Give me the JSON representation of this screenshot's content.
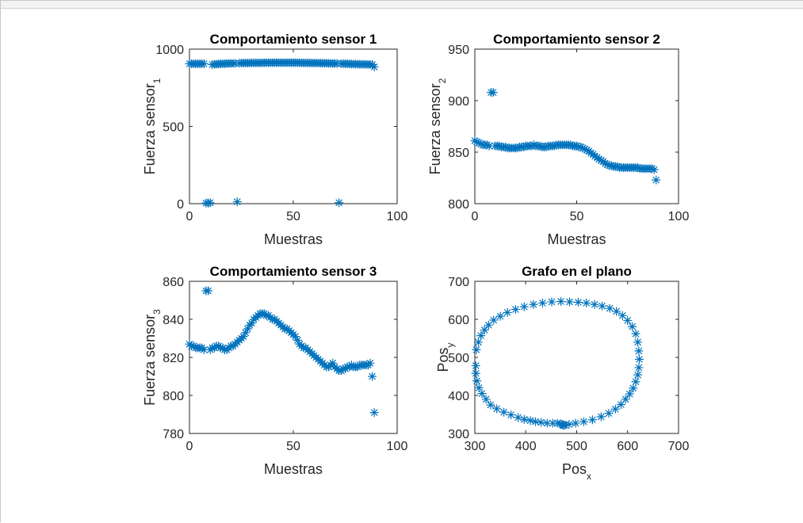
{
  "figure": {
    "marker_color": "#0072BD",
    "marker": "asterisk",
    "axes_color": "#262626"
  },
  "chart_data": [
    {
      "type": "scatter",
      "title": "Comportamiento sensor 1",
      "xlabel": "Muestras",
      "ylabel": "Fuerza sensor",
      "ylabel_sub": "1",
      "xlim": [
        0,
        100
      ],
      "ylim": [
        0,
        1000
      ],
      "xticks": [
        "0",
        "50",
        "100"
      ],
      "yticks": [
        "0",
        "500",
        "1000"
      ],
      "x": [
        0,
        1,
        2,
        3,
        4,
        5,
        6,
        7,
        8,
        9,
        10,
        11,
        12,
        13,
        14,
        15,
        16,
        17,
        18,
        19,
        20,
        21,
        22,
        23,
        24,
        25,
        26,
        27,
        28,
        29,
        30,
        31,
        32,
        33,
        34,
        35,
        36,
        37,
        38,
        39,
        40,
        41,
        42,
        43,
        44,
        45,
        46,
        47,
        48,
        49,
        50,
        51,
        52,
        53,
        54,
        55,
        56,
        57,
        58,
        59,
        60,
        61,
        62,
        63,
        64,
        65,
        66,
        67,
        68,
        69,
        70,
        71,
        72,
        73,
        74,
        75,
        76,
        77,
        78,
        79,
        80,
        81,
        82,
        83,
        84,
        85,
        86,
        87,
        88,
        89
      ],
      "y": [
        905,
        905,
        905,
        905,
        905,
        905,
        905,
        905,
        4,
        4,
        6,
        900,
        902,
        903,
        904,
        905,
        905,
        906,
        907,
        907,
        908,
        908,
        908,
        12,
        909,
        910,
        910,
        910,
        910,
        911,
        911,
        911,
        911,
        911,
        911,
        911,
        912,
        912,
        912,
        912,
        912,
        912,
        912,
        912,
        912,
        912,
        912,
        912,
        912,
        912,
        912,
        912,
        912,
        912,
        911,
        911,
        911,
        911,
        911,
        910,
        910,
        910,
        910,
        909,
        909,
        909,
        909,
        908,
        908,
        908,
        907,
        907,
        6,
        906,
        906,
        905,
        905,
        904,
        904,
        903,
        903,
        903,
        902,
        902,
        902,
        902,
        901,
        901,
        900,
        885
      ]
    },
    {
      "type": "scatter",
      "title": "Comportamiento sensor 2",
      "xlabel": "Muestras",
      "ylabel": "Fuerza sensor",
      "ylabel_sub": "2",
      "xlim": [
        0,
        100
      ],
      "ylim": [
        800,
        950
      ],
      "xticks": [
        "0",
        "50",
        "100"
      ],
      "yticks": [
        "800",
        "850",
        "900",
        "950"
      ],
      "x": [
        0,
        1,
        2,
        3,
        4,
        5,
        6,
        7,
        8,
        9,
        10,
        11,
        12,
        13,
        14,
        15,
        16,
        17,
        18,
        19,
        20,
        21,
        22,
        23,
        24,
        25,
        26,
        27,
        28,
        29,
        30,
        31,
        32,
        33,
        34,
        35,
        36,
        37,
        38,
        39,
        40,
        41,
        42,
        43,
        44,
        45,
        46,
        47,
        48,
        49,
        50,
        51,
        52,
        53,
        54,
        55,
        56,
        57,
        58,
        59,
        60,
        61,
        62,
        63,
        64,
        65,
        66,
        67,
        68,
        69,
        70,
        71,
        72,
        73,
        74,
        75,
        76,
        77,
        78,
        79,
        80,
        81,
        82,
        83,
        84,
        85,
        86,
        87,
        88,
        89
      ],
      "y": [
        861,
        860,
        859,
        858,
        857,
        857,
        857,
        856,
        908,
        908,
        856,
        856,
        856,
        855,
        855,
        855,
        854,
        854,
        854,
        854,
        854,
        854,
        855,
        855,
        855,
        856,
        856,
        856,
        856,
        857,
        856,
        856,
        856,
        855,
        855,
        855,
        856,
        856,
        856,
        856,
        857,
        857,
        857,
        857,
        857,
        857,
        857,
        857,
        856,
        856,
        856,
        855,
        855,
        854,
        853,
        852,
        851,
        849,
        848,
        846,
        845,
        843,
        842,
        841,
        839,
        838,
        837,
        837,
        836,
        836,
        836,
        835,
        835,
        835,
        835,
        835,
        835,
        835,
        835,
        835,
        835,
        834,
        834,
        834,
        834,
        834,
        834,
        834,
        833,
        823
      ]
    },
    {
      "type": "scatter",
      "title": "Comportamiento sensor 3",
      "xlabel": "Muestras",
      "ylabel": "Fuerza sensor",
      "ylabel_sub": "3",
      "xlim": [
        0,
        100
      ],
      "ylim": [
        780,
        860
      ],
      "xticks": [
        "0",
        "50",
        "100"
      ],
      "yticks": [
        "780",
        "800",
        "820",
        "840",
        "860"
      ],
      "x": [
        0,
        1,
        2,
        3,
        4,
        5,
        6,
        7,
        8,
        9,
        10,
        11,
        12,
        13,
        14,
        15,
        16,
        17,
        18,
        19,
        20,
        21,
        22,
        23,
        24,
        25,
        26,
        27,
        28,
        29,
        30,
        31,
        32,
        33,
        34,
        35,
        36,
        37,
        38,
        39,
        40,
        41,
        42,
        43,
        44,
        45,
        46,
        47,
        48,
        49,
        50,
        51,
        52,
        53,
        54,
        55,
        56,
        57,
        58,
        59,
        60,
        61,
        62,
        63,
        64,
        65,
        66,
        67,
        68,
        69,
        70,
        71,
        72,
        73,
        74,
        75,
        76,
        77,
        78,
        79,
        80,
        81,
        82,
        83,
        84,
        85,
        86,
        87,
        88,
        89
      ],
      "y": [
        827,
        826,
        826,
        825,
        825,
        825,
        825,
        824,
        855,
        855,
        824,
        825,
        825,
        826,
        826,
        825,
        825,
        824,
        824,
        825,
        826,
        826,
        827,
        828,
        829,
        830,
        831,
        833,
        835,
        837,
        838,
        840,
        841,
        842,
        843,
        843,
        843,
        842,
        842,
        841,
        840,
        840,
        839,
        838,
        837,
        836,
        835,
        835,
        834,
        833,
        832,
        831,
        829,
        827,
        826,
        825,
        825,
        824,
        823,
        822,
        821,
        820,
        819,
        818,
        817,
        816,
        815,
        815,
        816,
        817,
        815,
        814,
        813,
        813,
        814,
        814,
        815,
        815,
        816,
        815,
        815,
        815,
        816,
        816,
        816,
        816,
        816,
        817,
        810,
        791
      ]
    },
    {
      "type": "scatter",
      "title": "Grafo en el plano",
      "xlabel": "Pos",
      "xlabel_sub": "x",
      "ylabel": "Pos",
      "ylabel_sub": "y",
      "xlim": [
        300,
        700
      ],
      "ylim": [
        300,
        700
      ],
      "xticks": [
        "300",
        "400",
        "500",
        "600",
        "700"
      ],
      "yticks": [
        "300",
        "400",
        "500",
        "600",
        "700"
      ],
      "x": [
        303,
        307,
        312,
        319,
        327,
        337,
        350,
        364,
        380,
        397,
        415,
        433,
        451,
        469,
        486,
        503,
        519,
        535,
        550,
        565,
        578,
        590,
        600,
        609,
        616,
        620,
        622,
        623,
        622,
        620,
        616,
        611,
        604,
        596,
        587,
        576,
        563,
        548,
        531,
        514,
        498,
        485,
        477,
        474,
        473,
        471,
        468,
        462,
        453,
        442,
        430,
        419,
        409,
        397,
        385,
        371,
        357,
        343,
        331,
        322,
        314,
        308,
        304,
        302,
        302
      ],
      "y": [
        520,
        540,
        557,
        572,
        585,
        598,
        608,
        618,
        626,
        633,
        639,
        643,
        646,
        647,
        646,
        645,
        643,
        639,
        635,
        629,
        621,
        610,
        597,
        581,
        562,
        540,
        517,
        495,
        473,
        454,
        436,
        419,
        404,
        390,
        376,
        364,
        353,
        344,
        336,
        331,
        327,
        324,
        322,
        321,
        322,
        324,
        326,
        327,
        327,
        327,
        329,
        331,
        334,
        337,
        342,
        349,
        356,
        365,
        375,
        390,
        405,
        420,
        438,
        458,
        478
      ]
    }
  ]
}
